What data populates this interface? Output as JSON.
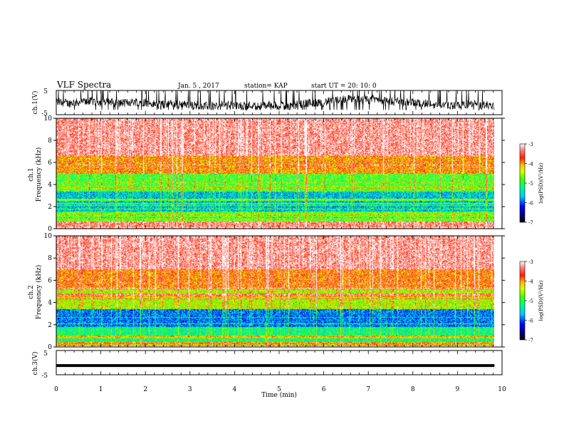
{
  "header": {
    "title": "VLF Spectra",
    "date": "Jan. 5 , 2017",
    "station": "station= KAP",
    "start": "start  UT =  20: 10: 0"
  },
  "chart_data": [
    {
      "type": "line",
      "id": "ch1-waveform",
      "ylabel": "ch.1(V)",
      "ylim": [
        -5,
        5
      ],
      "yticks": [
        5,
        -5
      ],
      "xlim": [
        0,
        10
      ],
      "description_values": "broadband waveform, amplitude mostly within -3..5 V, spanning 0 to 9.83 min"
    },
    {
      "type": "heatmap",
      "id": "ch1-spectrogram",
      "ylabel_line1": "ch.1",
      "ylabel_line2": "Frequency (kHz)",
      "ylim": [
        0,
        10
      ],
      "yticks": [
        0,
        2,
        4,
        6,
        8,
        10
      ],
      "xlim": [
        0,
        9.83
      ],
      "colorbar": {
        "label": "log(PSD)(V²/Hz)",
        "range": [
          -7,
          -3
        ],
        "ticks": [
          -3,
          -4,
          -5,
          -6,
          -7
        ]
      },
      "bands": [
        {
          "f_from": 0,
          "f_to": 0.7,
          "level": -3.4
        },
        {
          "f_from": 0.7,
          "f_to": 1.6,
          "level": -4.8
        },
        {
          "f_from": 1.6,
          "f_to": 3.4,
          "level": -5.6
        },
        {
          "f_from": 3.4,
          "f_to": 5.0,
          "level": -4.9
        },
        {
          "f_from": 5.0,
          "f_to": 6.6,
          "level": -4.0
        },
        {
          "f_from": 6.6,
          "f_to": 10,
          "level": -3.3
        }
      ]
    },
    {
      "type": "heatmap",
      "id": "ch2-spectrogram",
      "ylabel_line1": "ch.2",
      "ylabel_line2": "Frequency (kHz)",
      "ylim": [
        0,
        10
      ],
      "yticks": [
        0,
        2,
        4,
        6,
        8,
        10
      ],
      "xlim": [
        0,
        9.83
      ],
      "colorbar": {
        "label": "log(PSD)(V²/Hz)",
        "range": [
          -7,
          -3
        ],
        "ticks": [
          -3,
          -4,
          -5,
          -6,
          -7
        ]
      },
      "bands": [
        {
          "f_from": 0,
          "f_to": 0.4,
          "level": -4.2
        },
        {
          "f_from": 0.4,
          "f_to": 1.8,
          "level": -5.2
        },
        {
          "f_from": 1.8,
          "f_to": 3.4,
          "level": -5.9
        },
        {
          "f_from": 3.4,
          "f_to": 5.2,
          "level": -4.5
        },
        {
          "f_from": 5.2,
          "f_to": 7.0,
          "level": -3.9
        },
        {
          "f_from": 7.0,
          "f_to": 10,
          "level": -3.3
        }
      ]
    },
    {
      "type": "line",
      "id": "ch3-waveform",
      "ylabel": "ch.3(V)",
      "ylim": [
        -5,
        5
      ],
      "yticks": [
        5,
        -5
      ],
      "xlim": [
        0,
        10
      ],
      "constant_value": -1.2,
      "xticks": [
        0,
        1,
        2,
        3,
        4,
        5,
        6,
        7,
        8,
        9,
        10
      ],
      "xlabel": "Time (min)"
    }
  ]
}
